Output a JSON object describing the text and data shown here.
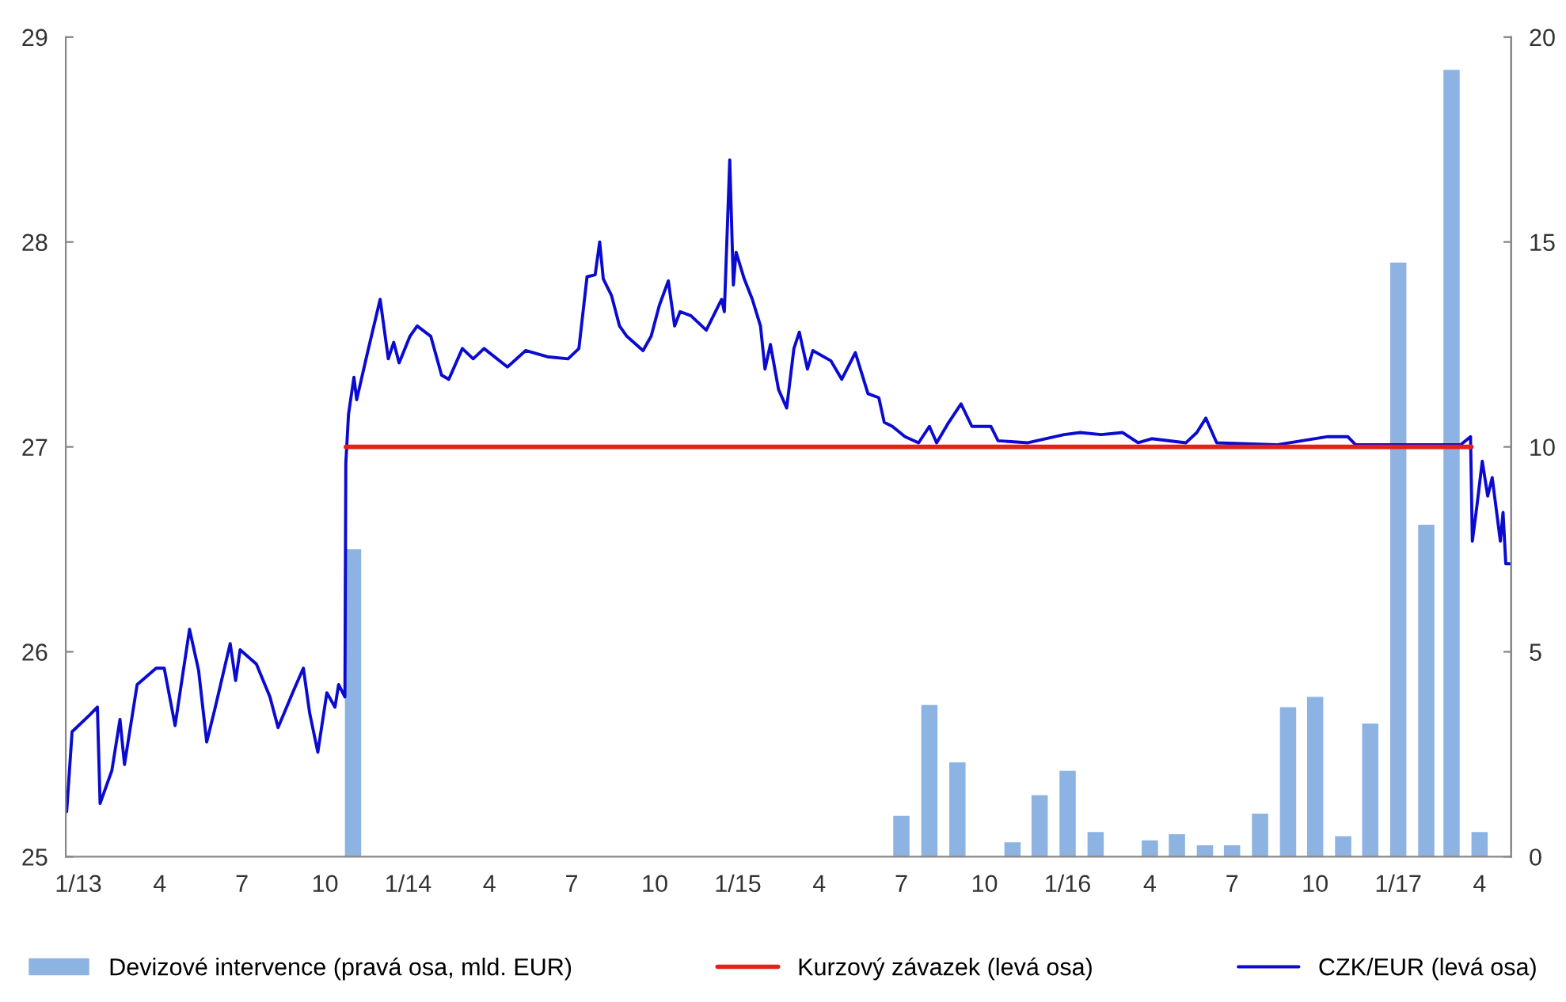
{
  "chart_data": {
    "type": "line",
    "xlim": [
      "2013-01-01",
      "2017-05-20"
    ],
    "xticks": [
      {
        "value": "2013-01-15",
        "label": "1/13"
      },
      {
        "value": "2013-04-15",
        "label": "4"
      },
      {
        "value": "2013-07-15",
        "label": "7"
      },
      {
        "value": "2013-10-15",
        "label": "10"
      },
      {
        "value": "2014-01-15",
        "label": "1/14"
      },
      {
        "value": "2014-04-15",
        "label": "4"
      },
      {
        "value": "2014-07-15",
        "label": "7"
      },
      {
        "value": "2014-10-15",
        "label": "10"
      },
      {
        "value": "2015-01-15",
        "label": "1/15"
      },
      {
        "value": "2015-04-15",
        "label": "4"
      },
      {
        "value": "2015-07-15",
        "label": "7"
      },
      {
        "value": "2015-10-15",
        "label": "10"
      },
      {
        "value": "2016-01-15",
        "label": "1/16"
      },
      {
        "value": "2016-04-15",
        "label": "4"
      },
      {
        "value": "2016-07-15",
        "label": "7"
      },
      {
        "value": "2016-10-15",
        "label": "10"
      },
      {
        "value": "2017-01-15",
        "label": "1/17"
      },
      {
        "value": "2017-04-15",
        "label": "4"
      }
    ],
    "ylim": [
      25,
      29
    ],
    "yticks": [
      25,
      26,
      27,
      28,
      29
    ],
    "y2lim": [
      0,
      20
    ],
    "y2ticks": [
      0,
      5,
      10,
      15,
      20
    ],
    "grid": false,
    "legend": "bottom",
    "series": [
      {
        "name": "Devizové intervence (pravá osa, mld. EUR)",
        "type": "bar",
        "axis": "y2",
        "color": "#8db3e2",
        "x": [
          "2013-11-15",
          "2015-07-15",
          "2015-08-15",
          "2015-09-15",
          "2015-11-15",
          "2015-12-15",
          "2016-01-15",
          "2016-02-15",
          "2016-04-15",
          "2016-05-15",
          "2016-06-15",
          "2016-07-15",
          "2016-08-15",
          "2016-09-15",
          "2016-10-15",
          "2016-11-15",
          "2016-12-15",
          "2017-01-15",
          "2017-02-15",
          "2017-03-15",
          "2017-04-15"
        ],
        "values": [
          7.5,
          1.0,
          3.7,
          2.3,
          0.35,
          1.5,
          2.1,
          0.6,
          0.4,
          0.55,
          0.28,
          0.28,
          1.05,
          3.65,
          3.9,
          0.5,
          3.25,
          14.5,
          8.1,
          19.2,
          0.6
        ]
      },
      {
        "name": "Kurzový závazek (levá osa)",
        "color": "#e2231a",
        "x": [
          "2013-11-07",
          "2017-04-06"
        ],
        "values": [
          27,
          27
        ]
      },
      {
        "name": "CZK/EUR (levá osa)",
        "color": "#0a0ad0",
        "x": [
          "2013-01-02",
          "2013-01-08",
          "2013-01-27",
          "2013-02-05",
          "2013-02-08",
          "2013-02-21",
          "2013-03-02",
          "2013-03-07",
          "2013-03-21",
          "2013-04-11",
          "2013-04-20",
          "2013-05-02",
          "2013-05-18",
          "2013-05-28",
          "2013-06-06",
          "2013-06-15",
          "2013-07-02",
          "2013-07-08",
          "2013-07-13",
          "2013-07-31",
          "2013-08-15",
          "2013-08-24",
          "2013-09-11",
          "2013-09-21",
          "2013-09-28",
          "2013-10-07",
          "2013-10-17",
          "2013-10-26",
          "2013-10-30",
          "2013-11-06",
          "2013-11-07",
          "2013-11-10",
          "2013-11-16",
          "2013-11-19",
          "2013-12-01",
          "2013-12-15",
          "2013-12-24",
          "2013-12-30",
          "2014-01-05",
          "2014-01-17",
          "2014-01-25",
          "2014-02-09",
          "2014-02-21",
          "2014-03-01",
          "2014-03-16",
          "2014-03-28",
          "2014-04-09",
          "2014-05-05",
          "2014-05-25",
          "2014-06-18",
          "2014-07-11",
          "2014-07-23",
          "2014-08-01",
          "2014-08-10",
          "2014-08-15",
          "2014-08-19",
          "2014-08-28",
          "2014-09-06",
          "2014-09-14",
          "2014-10-02",
          "2014-10-11",
          "2014-10-20",
          "2014-10-30",
          "2014-11-06",
          "2014-11-12",
          "2014-11-24",
          "2014-12-11",
          "2014-12-28",
          "2014-12-31",
          "2015-01-06",
          "2015-01-10",
          "2015-01-13",
          "2015-01-22",
          "2015-01-31",
          "2015-02-09",
          "2015-02-14",
          "2015-02-20",
          "2015-03-01",
          "2015-03-10",
          "2015-03-18",
          "2015-03-24",
          "2015-04-02",
          "2015-04-08",
          "2015-04-28",
          "2015-05-10",
          "2015-05-25",
          "2015-06-08",
          "2015-06-20",
          "2015-06-26",
          "2015-07-05",
          "2015-07-19",
          "2015-08-03",
          "2015-08-15",
          "2015-08-23",
          "2015-09-04",
          "2015-09-19",
          "2015-10-01",
          "2015-10-22",
          "2015-10-30",
          "2015-12-02",
          "2016-01-11",
          "2016-01-29",
          "2016-02-21",
          "2016-03-16",
          "2016-04-02",
          "2016-04-17",
          "2016-05-25",
          "2016-06-06",
          "2016-06-16",
          "2016-06-28",
          "2016-09-02",
          "2016-10-29",
          "2016-11-20",
          "2016-11-29",
          "2017-03-25",
          "2017-04-05",
          "2017-04-07",
          "2017-04-12",
          "2017-04-18",
          "2017-04-24",
          "2017-04-29",
          "2017-05-08",
          "2017-05-11",
          "2017-05-14",
          "2017-05-19"
        ],
        "values": [
          25.22,
          25.61,
          25.69,
          25.73,
          25.26,
          25.42,
          25.67,
          25.45,
          25.84,
          25.92,
          25.92,
          25.64,
          26.11,
          25.91,
          25.56,
          25.72,
          26.04,
          25.86,
          26.01,
          25.94,
          25.78,
          25.63,
          25.82,
          25.92,
          25.7,
          25.51,
          25.8,
          25.73,
          25.84,
          25.78,
          26.92,
          27.16,
          27.34,
          27.23,
          27.46,
          27.72,
          27.43,
          27.51,
          27.41,
          27.54,
          27.59,
          27.54,
          27.35,
          27.33,
          27.48,
          27.43,
          27.48,
          27.39,
          27.47,
          27.44,
          27.43,
          27.48,
          27.83,
          27.84,
          28.0,
          27.82,
          27.74,
          27.59,
          27.54,
          27.47,
          27.54,
          27.69,
          27.81,
          27.59,
          27.66,
          27.64,
          27.57,
          27.72,
          27.66,
          28.4,
          27.79,
          27.95,
          27.82,
          27.72,
          27.59,
          27.38,
          27.5,
          27.28,
          27.19,
          27.48,
          27.56,
          27.38,
          27.47,
          27.42,
          27.33,
          27.46,
          27.26,
          27.24,
          27.12,
          27.1,
          27.05,
          27.02,
          27.1,
          27.02,
          27.11,
          27.21,
          27.1,
          27.1,
          27.03,
          27.02,
          27.06,
          27.07,
          27.06,
          27.07,
          27.02,
          27.04,
          27.02,
          27.07,
          27.14,
          27.02,
          27.01,
          27.05,
          27.05,
          27.01,
          27.01,
          27.05,
          26.54,
          26.71,
          26.93,
          26.76,
          26.85,
          26.54,
          26.68,
          26.43,
          26.43
        ]
      }
    ]
  }
}
